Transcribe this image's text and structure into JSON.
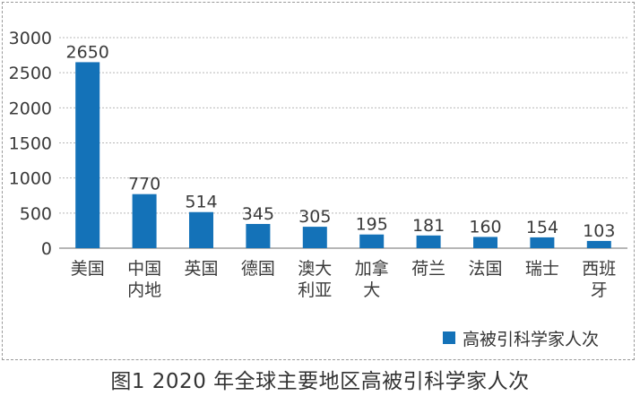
{
  "chart_data": {
    "type": "bar",
    "categories": [
      [
        "美国"
      ],
      [
        "中国",
        "内地"
      ],
      [
        "英国"
      ],
      [
        "德国"
      ],
      [
        "澳大",
        "利亚"
      ],
      [
        "加拿",
        "大"
      ],
      [
        "荷兰"
      ],
      [
        "法国"
      ],
      [
        "瑞士"
      ],
      [
        "西班",
        "牙"
      ]
    ],
    "values": [
      2650,
      770,
      514,
      345,
      305,
      195,
      181,
      160,
      154,
      103
    ],
    "series": [
      {
        "name": "高被引科学家人次",
        "values": [
          2650,
          770,
          514,
          345,
          305,
          195,
          181,
          160,
          154,
          103
        ]
      }
    ],
    "ylim": [
      0,
      3000
    ],
    "yticks": [
      0,
      500,
      1000,
      1500,
      2000,
      2500,
      3000
    ],
    "grid": true,
    "legend_position": "bottom-right",
    "bar_color": "#1472b8",
    "caption": "图1  2020 年全球主要地区高被引科学家人次"
  }
}
